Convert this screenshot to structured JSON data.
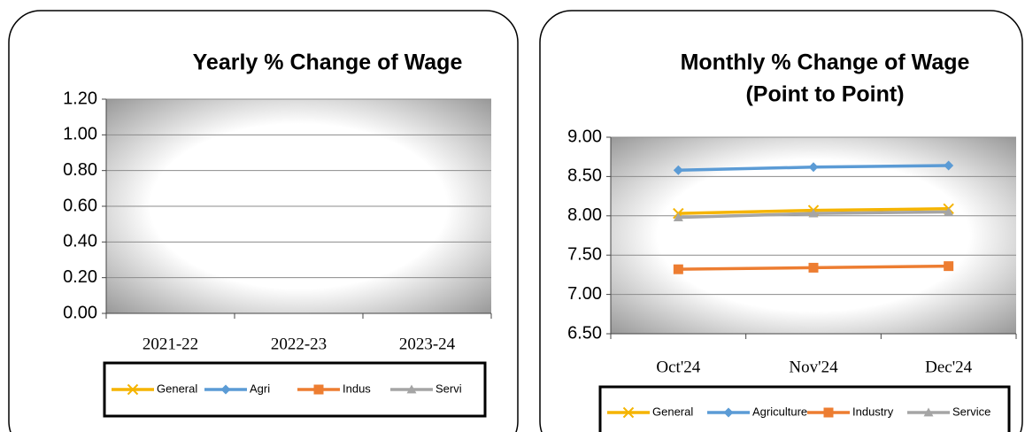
{
  "chart_data": [
    {
      "type": "line",
      "title": [
        "Yearly % Change of Wage"
      ],
      "categories": [
        "2021-22",
        "2022-23",
        "2023-24"
      ],
      "series": [
        {
          "name": "General",
          "color": "#f5b400",
          "marker": "x",
          "values": [
            null,
            null,
            null
          ]
        },
        {
          "name": "Agri",
          "color": "#5b9bd5",
          "marker": "diamond",
          "values": [
            null,
            null,
            null
          ]
        },
        {
          "name": "Indus",
          "color": "#ed7d31",
          "marker": "square",
          "values": [
            null,
            null,
            null
          ]
        },
        {
          "name": "Servi",
          "color": "#a5a5a5",
          "marker": "triangle",
          "values": [
            null,
            null,
            null
          ]
        }
      ],
      "ylim": [
        0,
        1.2
      ],
      "yticks": [
        {
          "value": 0,
          "label": "0.00"
        },
        {
          "value": 0.2,
          "label": "0.20"
        },
        {
          "value": 0.4,
          "label": "0.40"
        },
        {
          "value": 0.6,
          "label": "0.60"
        },
        {
          "value": 0.8,
          "label": "0.80"
        },
        {
          "value": 1,
          "label": "1.00"
        },
        {
          "value": 1.2,
          "label": "1.20"
        }
      ],
      "grid": true,
      "legend": "bottom"
    },
    {
      "type": "line",
      "title": [
        "Monthly % Change of Wage",
        "(Point to Point)"
      ],
      "categories": [
        "Oct'24",
        "Nov'24",
        "Dec'24"
      ],
      "series": [
        {
          "name": "General",
          "color": "#f5b400",
          "marker": "x",
          "values": [
            8.03,
            8.07,
            8.09
          ]
        },
        {
          "name": "Agriculture",
          "color": "#5b9bd5",
          "marker": "diamond",
          "values": [
            8.58,
            8.62,
            8.64
          ]
        },
        {
          "name": "Industry",
          "color": "#ed7d31",
          "marker": "square",
          "values": [
            7.32,
            7.34,
            7.36
          ]
        },
        {
          "name": "Service",
          "color": "#a5a5a5",
          "marker": "triangle",
          "values": [
            7.98,
            8.03,
            8.05
          ]
        }
      ],
      "ylim": [
        6.5,
        9
      ],
      "yticks": [
        {
          "value": 6.5,
          "label": "6.50"
        },
        {
          "value": 7,
          "label": "7.00"
        },
        {
          "value": 7.5,
          "label": "7.50"
        },
        {
          "value": 8,
          "label": "8.00"
        },
        {
          "value": 8.5,
          "label": "8.50"
        },
        {
          "value": 9,
          "label": "9.00"
        }
      ],
      "grid": true,
      "legend": "bottom"
    }
  ]
}
